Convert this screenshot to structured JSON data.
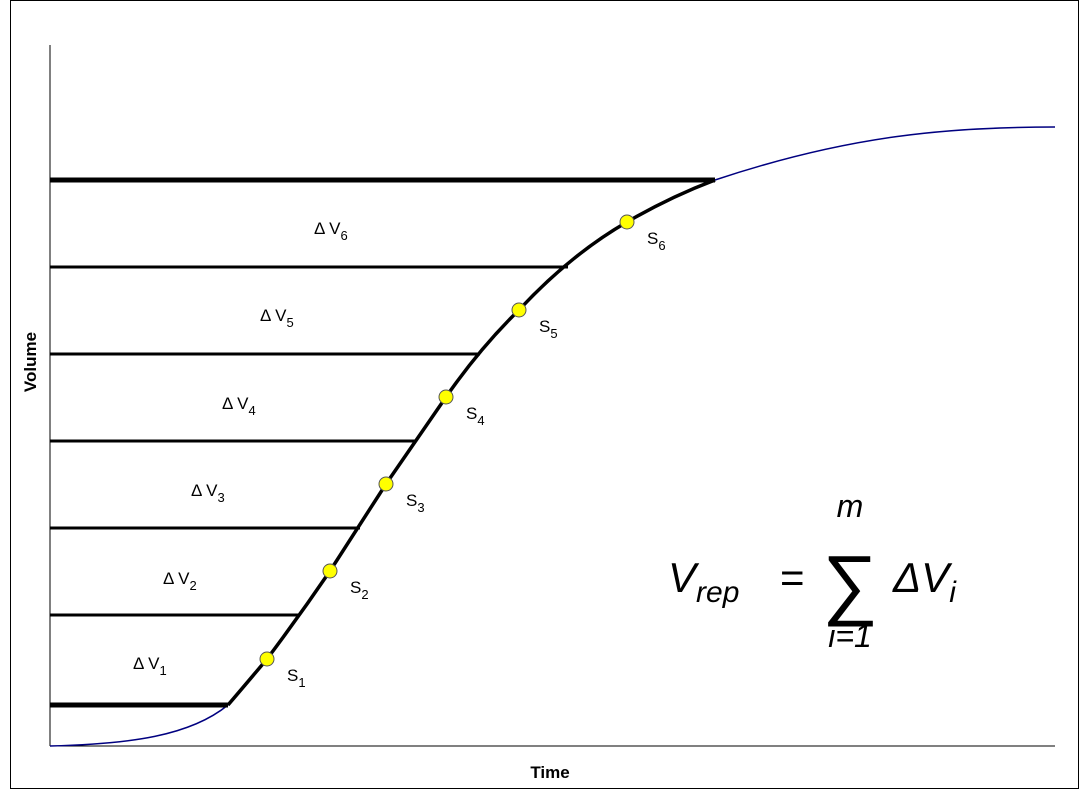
{
  "axes": {
    "y_label": "Volume",
    "x_label": "Time"
  },
  "bands": [
    {
      "symbol": "Δ V",
      "index": "1"
    },
    {
      "symbol": "Δ V",
      "index": "2"
    },
    {
      "symbol": "Δ V",
      "index": "3"
    },
    {
      "symbol": "Δ V",
      "index": "4"
    },
    {
      "symbol": "Δ V",
      "index": "5"
    },
    {
      "symbol": "Δ V",
      "index": "6"
    }
  ],
  "points": [
    {
      "letter": "S",
      "index": "1"
    },
    {
      "letter": "S",
      "index": "2"
    },
    {
      "letter": "S",
      "index": "3"
    },
    {
      "letter": "S",
      "index": "4"
    },
    {
      "letter": "S",
      "index": "5"
    },
    {
      "letter": "S",
      "index": "6"
    }
  ],
  "formula": {
    "lhs": "V",
    "lhs_sub": "rep",
    "operator": "=",
    "sum": "∑",
    "upper": "m",
    "lower": "i=1",
    "term": "ΔV",
    "term_sub": "i"
  }
}
